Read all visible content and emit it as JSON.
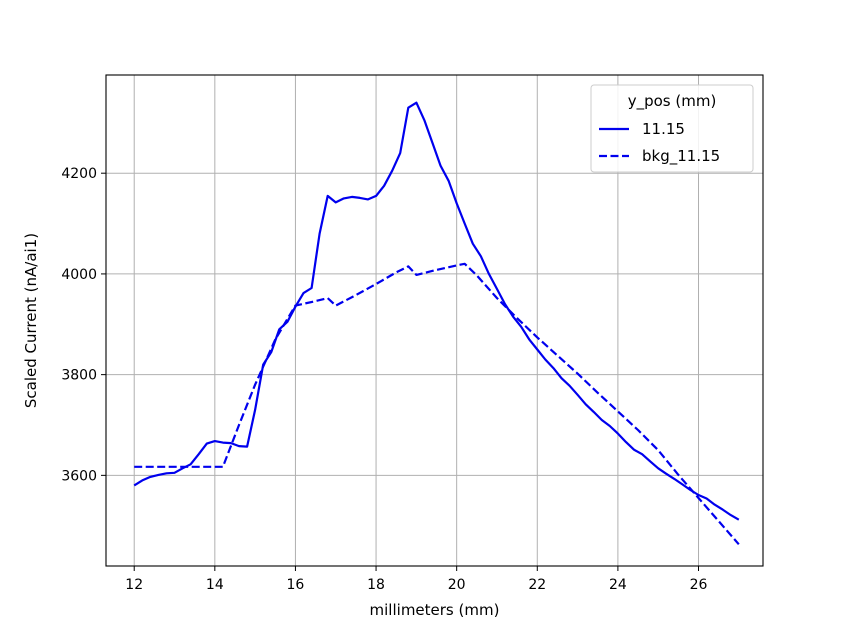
{
  "chart_data": {
    "type": "line",
    "xlabel": "millimeters (mm)",
    "ylabel": "Scaled Current (nA/ai1)",
    "xlim": [
      11.3,
      27.6
    ],
    "ylim": [
      3420,
      4395
    ],
    "xticks": [
      "12",
      "14",
      "16",
      "18",
      "20",
      "22",
      "24",
      "26"
    ],
    "yticks": [
      "3600",
      "3800",
      "4000",
      "4200"
    ],
    "grid": true,
    "legend": {
      "title": "y_pos (mm)",
      "placement": "top-right"
    },
    "series": [
      {
        "name": "11.15",
        "style": "solid",
        "color": "#0000ee",
        "x": [
          12.0,
          12.2,
          12.4,
          12.6,
          12.8,
          13.0,
          13.2,
          13.4,
          13.6,
          13.8,
          14.0,
          14.2,
          14.4,
          14.6,
          14.8,
          15.0,
          15.2,
          15.4,
          15.6,
          15.8,
          16.0,
          16.2,
          16.4,
          16.6,
          16.8,
          17.0,
          17.2,
          17.4,
          17.6,
          17.8,
          18.0,
          18.2,
          18.4,
          18.6,
          18.8,
          19.0,
          19.2,
          19.4,
          19.6,
          19.8,
          20.0,
          20.2,
          20.4,
          20.6,
          20.8,
          21.0,
          21.2,
          21.4,
          21.6,
          21.8,
          22.0,
          22.2,
          22.4,
          22.6,
          22.8,
          23.0,
          23.2,
          23.4,
          23.6,
          23.8,
          24.0,
          24.2,
          24.4,
          24.6,
          24.8,
          25.0,
          25.2,
          25.4,
          25.6,
          25.8,
          26.0,
          26.2,
          26.4,
          26.6,
          26.8,
          27.0
        ],
        "y": [
          3580,
          3590,
          3597,
          3601,
          3604,
          3605,
          3614,
          3622,
          3642,
          3663,
          3668,
          3665,
          3664,
          3658,
          3657,
          3730,
          3820,
          3845,
          3890,
          3905,
          3935,
          3962,
          3972,
          4080,
          4155,
          4142,
          4150,
          4153,
          4151,
          4148,
          4155,
          4175,
          4205,
          4240,
          4330,
          4340,
          4305,
          4260,
          4215,
          4185,
          4140,
          4100,
          4060,
          4035,
          4000,
          3970,
          3940,
          3915,
          3895,
          3870,
          3850,
          3830,
          3813,
          3793,
          3778,
          3760,
          3741,
          3726,
          3710,
          3698,
          3683,
          3666,
          3651,
          3642,
          3628,
          3614,
          3603,
          3593,
          3582,
          3571,
          3561,
          3554,
          3542,
          3532,
          3521,
          3512
        ]
      },
      {
        "name": "bkg_11.15",
        "style": "dashed",
        "color": "#0000ee",
        "x": [
          12.0,
          12.5,
          13.0,
          13.5,
          14.2,
          14.6,
          15.0,
          15.5,
          16.0,
          16.5,
          16.8,
          17.0,
          17.5,
          18.0,
          18.5,
          18.8,
          19.0,
          19.5,
          20.0,
          20.2,
          20.5,
          21.0,
          21.5,
          22.0,
          22.5,
          23.0,
          23.5,
          24.0,
          24.5,
          25.0,
          25.5,
          26.0,
          26.5,
          27.0
        ],
        "y": [
          3617,
          3617,
          3617,
          3617,
          3617,
          3700,
          3780,
          3870,
          3937,
          3946,
          3952,
          3937,
          3958,
          3980,
          4003,
          4015,
          3998,
          4008,
          4017,
          4020,
          3997,
          3952,
          3912,
          3874,
          3838,
          3802,
          3764,
          3727,
          3690,
          3650,
          3601,
          3555,
          3509,
          3463
        ]
      }
    ]
  }
}
